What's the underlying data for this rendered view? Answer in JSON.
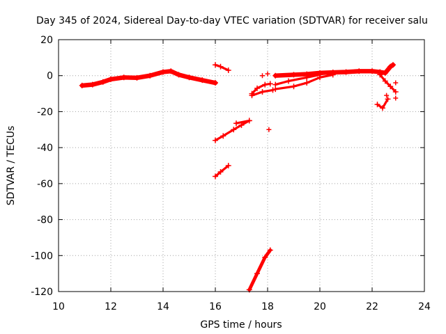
{
  "chart_data": {
    "type": "scatter",
    "title": "Day 345 of 2024, Sidereal Day-to-day VTEC variation (SDTVAR) for receiver salu",
    "xlabel": "GPS time / hours",
    "ylabel": "SDTVAR / TECUs",
    "xlim": [
      10,
      24
    ],
    "ylim": [
      -120,
      20
    ],
    "xticks": [
      "10",
      "12",
      "14",
      "16",
      "18",
      "20",
      "22",
      "24"
    ],
    "yticks": [
      "20",
      "0",
      "-20",
      "-40",
      "-60",
      "-80",
      "-100",
      "-120"
    ],
    "grid": true,
    "marker": "plus",
    "color": "#ff0000",
    "segments": [
      {
        "points": [
          [
            10.9,
            -5.5
          ],
          [
            11.3,
            -5.0
          ],
          [
            11.7,
            -3.5
          ],
          [
            12.0,
            -2.0
          ],
          [
            12.5,
            -1.0
          ],
          [
            13.0,
            -1.2
          ],
          [
            13.5,
            0.0
          ],
          [
            14.0,
            2.0
          ],
          [
            14.3,
            2.5
          ],
          [
            14.6,
            0.5
          ],
          [
            15.0,
            -1.0
          ],
          [
            15.5,
            -2.5
          ],
          [
            16.0,
            -4.0
          ]
        ],
        "thickness": 4
      },
      {
        "points": [
          [
            16.0,
            6.0
          ],
          [
            16.2,
            5.0
          ],
          [
            16.5,
            3.0
          ]
        ],
        "thickness": 2
      },
      {
        "points": [
          [
            16.0,
            -36.0
          ],
          [
            16.3,
            -33.5
          ],
          [
            16.7,
            -30.0
          ],
          [
            17.0,
            -27.5
          ],
          [
            17.3,
            -25.0
          ]
        ],
        "thickness": 2
      },
      {
        "points": [
          [
            16.8,
            -26.5
          ],
          [
            17.3,
            -25.0
          ]
        ],
        "thickness": 2
      },
      {
        "points": [
          [
            16.0,
            -56.0
          ],
          [
            16.2,
            -53.5
          ],
          [
            16.5,
            -50.0
          ]
        ],
        "thickness": 2
      },
      {
        "points": [
          [
            17.3,
            -119.0
          ],
          [
            17.6,
            -110.0
          ],
          [
            17.9,
            -101.0
          ],
          [
            18.1,
            -97.0
          ]
        ],
        "thickness": 3
      },
      {
        "points": [
          [
            17.4,
            -10.0
          ],
          [
            17.6,
            -7.0
          ],
          [
            17.9,
            -5.0
          ],
          [
            18.1,
            -4.5
          ]
        ],
        "thickness": 2
      },
      {
        "points": [
          [
            17.4,
            -11.0
          ],
          [
            17.8,
            -9.0
          ],
          [
            18.2,
            -8.0
          ]
        ],
        "thickness": 2
      },
      {
        "points": [
          [
            18.3,
            -5.0
          ],
          [
            18.8,
            -3.0
          ],
          [
            19.5,
            -1.0
          ],
          [
            20.0,
            0.5
          ]
        ],
        "thickness": 2
      },
      {
        "points": [
          [
            18.3,
            -7.5
          ],
          [
            19.0,
            -6.0
          ],
          [
            19.5,
            -4.0
          ],
          [
            20.0,
            -1.0
          ],
          [
            20.5,
            0.5
          ]
        ],
        "thickness": 2
      },
      {
        "points": [
          [
            18.3,
            0.0
          ],
          [
            19.0,
            0.5
          ],
          [
            19.5,
            0.8
          ],
          [
            20.0,
            1.5
          ],
          [
            20.5,
            1.8
          ],
          [
            21.0,
            2.0
          ],
          [
            21.5,
            2.5
          ],
          [
            22.0,
            2.5
          ],
          [
            22.3,
            2.0
          ],
          [
            22.5,
            1.5
          ],
          [
            22.7,
            5.0
          ],
          [
            22.8,
            6.0
          ]
        ],
        "thickness": 4
      },
      {
        "points": [
          [
            22.3,
            0.5
          ],
          [
            22.5,
            -3.0
          ],
          [
            22.7,
            -6.0
          ],
          [
            22.9,
            -9.0
          ]
        ],
        "thickness": 2
      },
      {
        "points": [
          [
            22.2,
            -16.0
          ],
          [
            22.4,
            -18.0
          ],
          [
            22.6,
            -13.0
          ]
        ],
        "thickness": 2
      }
    ],
    "points": [
      [
        17.8,
        0.0
      ],
      [
        18.0,
        1.0
      ],
      [
        18.05,
        -30.0
      ],
      [
        22.9,
        -4.0
      ],
      [
        22.9,
        -12.5
      ],
      [
        22.55,
        -11.0
      ]
    ]
  }
}
